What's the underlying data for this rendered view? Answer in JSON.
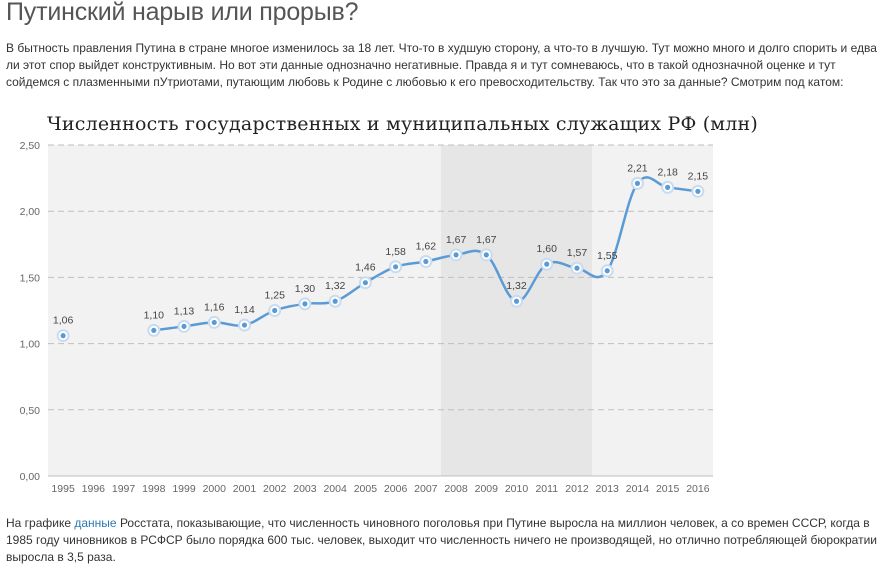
{
  "page": {
    "title": "Путинский нарыв или прорыв?",
    "intro": "В бытность правления Путина в стране многое изменилось за 18 лет. Что-то в худшую сторону, а что-то в лучшую. Тут можно много и долго спорить и едва ли этот спор выйдет конструктивным. Но вот эти данные однозначно негативные. Правда я и тут сомневаюсь, что в такой однозначной оценке и тут сойдемся с плазменными пУтриотами, путающим любовь к Родине с любовью к его превосходительству. Так что это за данные? Смотрим под катом:",
    "outro_before": "На графике ",
    "outro_link": "данные",
    "outro_after": " Росстата, показывающие, что численность чиновного поголовья при Путине выросла на миллион человек, а со времен СССР, когда в 1985 году чиновников в РСФСР было порядка 600 тыс. человек, выходит что численность ничего не производящей, но отлично потребляющей бюрократии выросла в 3,5 раза."
  },
  "chart_data": {
    "type": "line",
    "title": "Численность государственных и муниципальных служащих РФ (млн)",
    "categories": [
      "1995",
      "1996",
      "1997",
      "1998",
      "1999",
      "2000",
      "2001",
      "2002",
      "2003",
      "2004",
      "2005",
      "2006",
      "2007",
      "2008",
      "2009",
      "2010",
      "2011",
      "2012",
      "2013",
      "2014",
      "2015",
      "2016"
    ],
    "values": [
      1.06,
      null,
      null,
      1.1,
      1.13,
      1.16,
      1.14,
      1.25,
      1.3,
      1.32,
      1.46,
      1.58,
      1.62,
      1.67,
      1.67,
      1.32,
      1.6,
      1.57,
      1.55,
      2.21,
      2.18,
      2.15
    ],
    "data_labels": [
      "1,06",
      "",
      "",
      "1,10",
      "1,13",
      "1,16",
      "1,14",
      "1,25",
      "1,30",
      "1,32",
      "1,46",
      "1,58",
      "1,62",
      "1,67",
      "1,67",
      "1,32",
      "1,60",
      "1,57",
      "1,55",
      "2,21",
      "2,18",
      "2,15"
    ],
    "ylim": [
      0,
      2.5
    ],
    "yticks": [
      0,
      0.5,
      1.0,
      1.5,
      2.0,
      2.5
    ],
    "ytick_labels": [
      "0,00",
      "0,50",
      "1,00",
      "1,50",
      "2,00",
      "2,50"
    ],
    "highlight_range": [
      "2008",
      "2012"
    ],
    "grid": true,
    "legend": "none",
    "colors": {
      "line": "#5b9bd5",
      "plot_bg": "#f2f2f2",
      "highlight": "#e6e6e6",
      "grid": "#bfbfbf"
    }
  }
}
